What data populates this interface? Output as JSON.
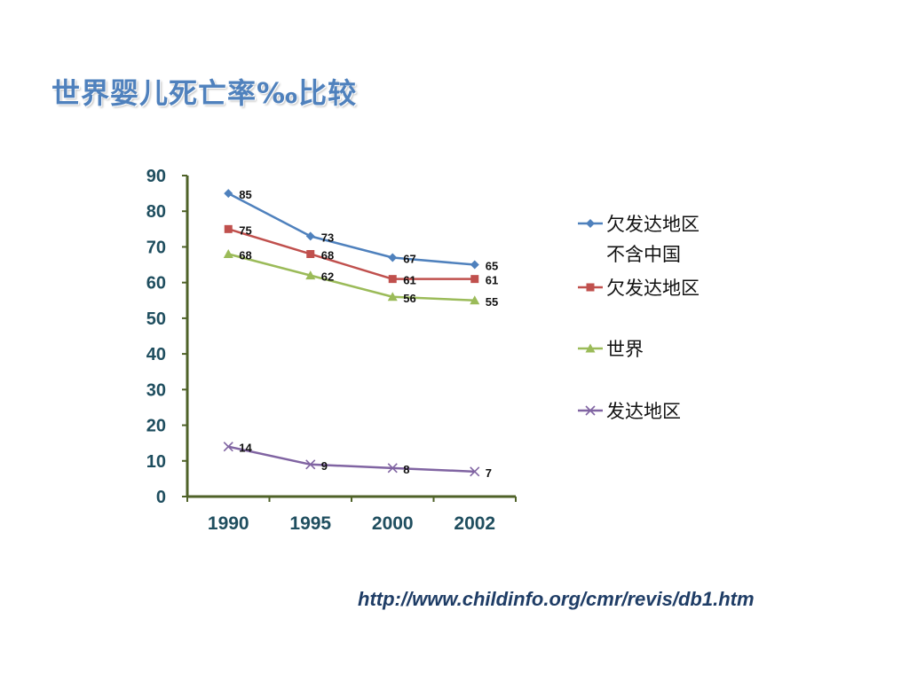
{
  "slide": {
    "title": "世界婴儿死亡率‰比较",
    "source_url": "http://www.childinfo.org/cmr/revis/db1.htm"
  },
  "chart_data": {
    "type": "line",
    "categories": [
      "1990",
      "1995",
      "2000",
      "2002"
    ],
    "ylim": [
      0,
      90
    ],
    "yticks": [
      0,
      10,
      20,
      30,
      40,
      50,
      60,
      70,
      80,
      90
    ],
    "grid": false,
    "legend": "right",
    "series": [
      {
        "name": "欠发达地区\n不含中国",
        "values": [
          85,
          73,
          67,
          65
        ],
        "color": "#4f81bd",
        "marker": "diamond"
      },
      {
        "name": "欠发达地区",
        "values": [
          75,
          68,
          61,
          61
        ],
        "color": "#c0504d",
        "marker": "square"
      },
      {
        "name": "世界",
        "values": [
          68,
          62,
          56,
          55
        ],
        "color": "#9bbb59",
        "marker": "triangle"
      },
      {
        "name": "发达地区",
        "values": [
          14,
          9,
          8,
          7
        ],
        "color": "#8064a2",
        "marker": "x"
      }
    ]
  }
}
